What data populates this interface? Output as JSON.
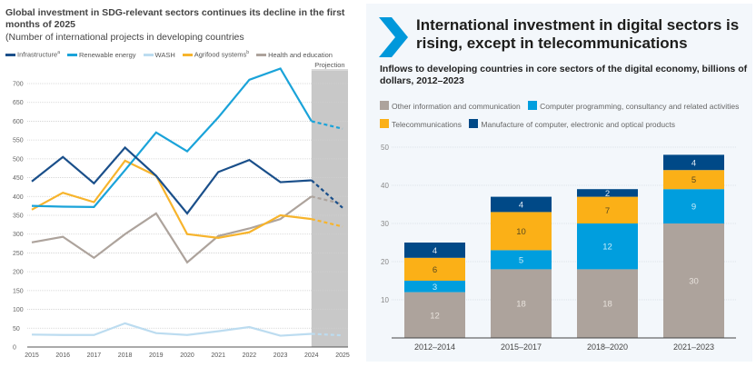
{
  "chart_data": [
    {
      "type": "line",
      "title": "Global investment in SDG-relevant sectors continues its decline in the first months of 2025",
      "subtitle": "(Number of international projects in developing countries",
      "xlabel": "",
      "ylabel": "",
      "x": [
        "2015",
        "2016",
        "2017",
        "2018",
        "2019",
        "2020",
        "2021",
        "2022",
        "2023",
        "2024",
        "2025"
      ],
      "ylim": [
        0,
        700
      ],
      "yticks": [
        0,
        50,
        100,
        150,
        200,
        250,
        300,
        350,
        400,
        450,
        500,
        550,
        600,
        650,
        700
      ],
      "grid": true,
      "legend_position": "top",
      "annotation": "Projection",
      "projection_from": "2024",
      "series": [
        {
          "name": "Infrastructure",
          "sup": "a",
          "color": "#1a4f8a",
          "values": [
            440,
            505,
            435,
            530,
            455,
            355,
            465,
            497,
            438,
            443,
            370
          ]
        },
        {
          "name": "Renewable energy",
          "sup": "",
          "color": "#1aa3d9",
          "values": [
            375,
            373,
            372,
            470,
            570,
            520,
            610,
            710,
            740,
            600,
            580
          ]
        },
        {
          "name": "WASH",
          "sup": "",
          "color": "#bcdcf0",
          "values": [
            33,
            32,
            32,
            63,
            37,
            32,
            42,
            53,
            30,
            35,
            31
          ]
        },
        {
          "name": "Agrifood systems",
          "sup": "b",
          "color": "#f7b42c",
          "values": [
            365,
            410,
            385,
            495,
            455,
            300,
            290,
            305,
            350,
            340,
            320
          ]
        },
        {
          "name": "Health  and education",
          "sup": "",
          "color": "#ada39c",
          "values": [
            278,
            293,
            237,
            300,
            355,
            225,
            295,
            315,
            340,
            400,
            380
          ]
        }
      ]
    },
    {
      "type": "bar",
      "stacked": true,
      "title": "International investment in digital sectors is rising, except in telecommunications",
      "subtitle": "Inflows to developing countries in core sectors of the digital economy, billions of dollars, 2012–2023",
      "xlabel": "",
      "ylabel": "",
      "categories": [
        "2012–2014",
        "2015–2017",
        "2018–2020",
        "2021–2023"
      ],
      "ylim": [
        0,
        50
      ],
      "yticks": [
        10,
        20,
        30,
        40,
        50
      ],
      "grid": true,
      "legend_position": "top",
      "series": [
        {
          "name": "Other information and communication",
          "color": "#ada39c",
          "label_color": "#e8e2dc",
          "values": [
            12,
            18,
            18,
            30
          ]
        },
        {
          "name": "Computer programming, consultancy and related activities",
          "color": "#009ede",
          "label_color": "#c9ecf9",
          "values": [
            3,
            5,
            12,
            9
          ]
        },
        {
          "name": "Telecommunications",
          "color": "#fbb017",
          "label_color": "#5a4a20",
          "values": [
            6,
            10,
            7,
            5
          ]
        },
        {
          "name": "Manufacture of computer, electronic and optical products",
          "color": "#004987",
          "label_color": "#dde8f3",
          "values": [
            4,
            4,
            2,
            4
          ]
        }
      ]
    }
  ],
  "left": {
    "title": "Global investment in SDG-relevant sectors continues its decline in the first months of 2025",
    "subtitle": "(Number of international projects in developing countries",
    "projection_label": "Projection"
  },
  "right": {
    "icon": "chevron-right-icon",
    "accent": "#0098db",
    "title": "International investment in digital sectors is rising, except in telecommunications",
    "subtitle": "Inflows to developing countries in core sectors of the digital economy, billions of dollars, 2012–2023"
  }
}
